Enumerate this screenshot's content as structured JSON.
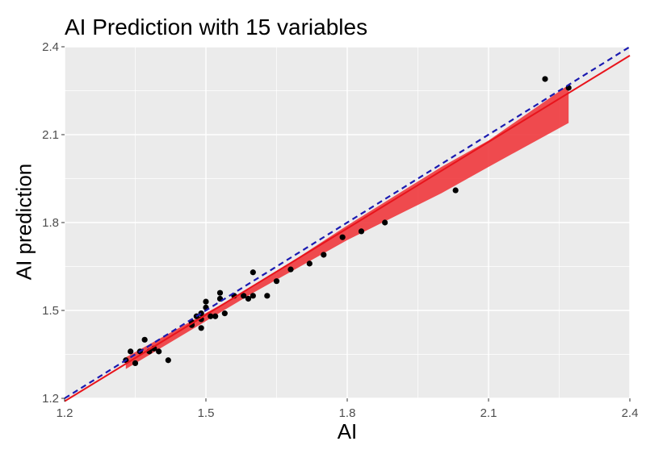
{
  "chart_data": {
    "type": "scatter",
    "title": "AI Prediction with 15 variables",
    "xlabel": "AI",
    "ylabel": "AI prediction",
    "xlim": [
      1.2,
      2.4
    ],
    "ylim": [
      1.2,
      2.4
    ],
    "x_ticks": [
      "1.2",
      "1.5",
      "1.8",
      "2.1",
      "2.4"
    ],
    "y_ticks": [
      "1.2",
      "1.5",
      "1.8",
      "2.1",
      "2.4"
    ],
    "grid": true,
    "points": [
      {
        "x": 1.33,
        "y": 1.33
      },
      {
        "x": 1.34,
        "y": 1.36
      },
      {
        "x": 1.35,
        "y": 1.32
      },
      {
        "x": 1.36,
        "y": 1.36
      },
      {
        "x": 1.37,
        "y": 1.4
      },
      {
        "x": 1.38,
        "y": 1.36
      },
      {
        "x": 1.39,
        "y": 1.37
      },
      {
        "x": 1.4,
        "y": 1.36
      },
      {
        "x": 1.42,
        "y": 1.33
      },
      {
        "x": 1.47,
        "y": 1.45
      },
      {
        "x": 1.47,
        "y": 1.46
      },
      {
        "x": 1.48,
        "y": 1.48
      },
      {
        "x": 1.49,
        "y": 1.44
      },
      {
        "x": 1.49,
        "y": 1.47
      },
      {
        "x": 1.49,
        "y": 1.49
      },
      {
        "x": 1.5,
        "y": 1.51
      },
      {
        "x": 1.5,
        "y": 1.53
      },
      {
        "x": 1.51,
        "y": 1.48
      },
      {
        "x": 1.52,
        "y": 1.48
      },
      {
        "x": 1.53,
        "y": 1.54
      },
      {
        "x": 1.53,
        "y": 1.56
      },
      {
        "x": 1.54,
        "y": 1.49
      },
      {
        "x": 1.56,
        "y": 1.55
      },
      {
        "x": 1.58,
        "y": 1.55
      },
      {
        "x": 1.59,
        "y": 1.54
      },
      {
        "x": 1.6,
        "y": 1.55
      },
      {
        "x": 1.6,
        "y": 1.63
      },
      {
        "x": 1.63,
        "y": 1.55
      },
      {
        "x": 1.65,
        "y": 1.6
      },
      {
        "x": 1.68,
        "y": 1.64
      },
      {
        "x": 1.72,
        "y": 1.66
      },
      {
        "x": 1.75,
        "y": 1.69
      },
      {
        "x": 1.79,
        "y": 1.75
      },
      {
        "x": 1.83,
        "y": 1.77
      },
      {
        "x": 1.88,
        "y": 1.8
      },
      {
        "x": 2.03,
        "y": 1.91
      },
      {
        "x": 2.22,
        "y": 2.29
      },
      {
        "x": 2.27,
        "y": 2.26
      }
    ],
    "fit_line": {
      "x": [
        1.2,
        2.4
      ],
      "y": [
        1.19,
        2.37
      ],
      "color": "#e8141c"
    },
    "confidence_band": {
      "x": [
        1.33,
        1.6,
        1.8,
        2.0,
        2.1,
        2.27
      ],
      "lower": [
        1.3,
        1.56,
        1.74,
        1.9,
        1.99,
        2.14
      ],
      "upper": [
        1.34,
        1.58,
        1.79,
        1.99,
        2.08,
        2.27
      ],
      "color": "#f0383d"
    },
    "reference_line": {
      "x": [
        1.2,
        2.4
      ],
      "y": [
        1.2,
        2.4
      ],
      "color": "#1a1ab0",
      "style": "dashed"
    },
    "colors": {
      "panel": "#ebebeb",
      "grid": "#ffffff",
      "point": "#000000"
    }
  }
}
